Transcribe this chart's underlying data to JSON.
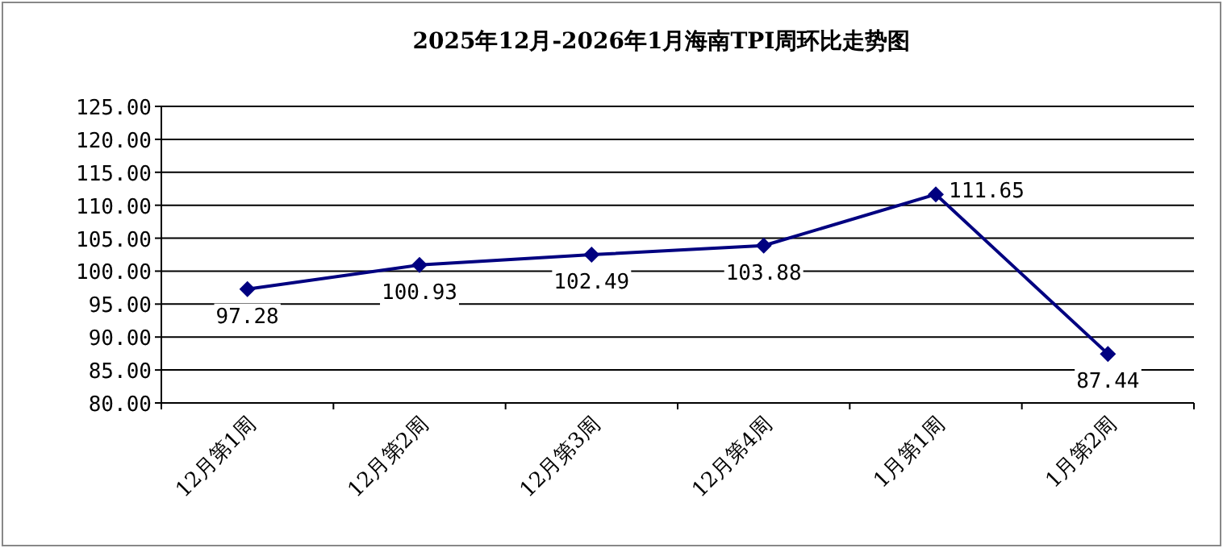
{
  "chart_data": {
    "type": "line",
    "title": "2025年12月-2026年1月海南TPI周环比走势图",
    "categories": [
      "12月第1周",
      "12月第2周",
      "12月第3周",
      "12月第4周",
      "1月第1周",
      "1月第2周"
    ],
    "values": [
      97.28,
      100.93,
      102.49,
      103.88,
      111.65,
      87.44
    ],
    "color": "#000080",
    "marker": "diamond",
    "line_style": "solid",
    "data_labels": true,
    "grid": "y",
    "ylim": [
      80,
      125
    ],
    "yticks": [
      {
        "value": 80,
        "label": "80.00"
      },
      {
        "value": 85,
        "label": "85.00"
      },
      {
        "value": 90,
        "label": "90.00"
      },
      {
        "value": 95,
        "label": "95.00"
      },
      {
        "value": 100,
        "label": "100.00"
      },
      {
        "value": 105,
        "label": "105.00"
      },
      {
        "value": 110,
        "label": "110.00"
      },
      {
        "value": 115,
        "label": "115.00"
      },
      {
        "value": 120,
        "label": "120.00"
      },
      {
        "value": 125,
        "label": "125.00"
      }
    ]
  }
}
